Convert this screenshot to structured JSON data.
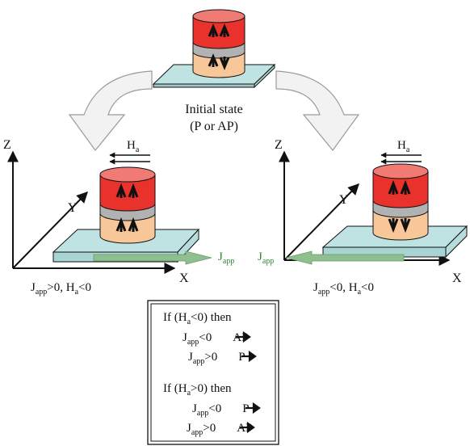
{
  "initial_state": {
    "line1": "Initial state",
    "line2": "(P or AP)"
  },
  "left_panel": {
    "axis_z": "Z",
    "axis_y": "Y",
    "axis_x": "X",
    "field_label": {
      "base": "H",
      "sub": "a"
    },
    "current_label": {
      "base": "J",
      "sub": "app"
    },
    "condition": {
      "j": "J",
      "j_sub": "app",
      "j_rel": ">0, H",
      "h_sub": "a",
      "h_rel": "<0"
    }
  },
  "right_panel": {
    "axis_z": "Z",
    "axis_y": "Y",
    "axis_x": "X",
    "field_label": {
      "base": "H",
      "sub": "a"
    },
    "current_label": {
      "base": "J",
      "sub": "app"
    },
    "condition": {
      "j": "J",
      "j_sub": "app",
      "j_rel": "<0, H",
      "h_sub": "a",
      "h_rel": "<0"
    }
  },
  "rules": {
    "block1": {
      "if": "If  (H",
      "h_sub": "a",
      "cond": "<0)  then",
      "r1_j": "J",
      "r1_sub": "app",
      "r1_rel": "<0",
      "r1_res": "AP",
      "r2_j": "J",
      "r2_sub": "app",
      "r2_rel": ">0",
      "r2_res": "P"
    },
    "block2": {
      "if": "If  (H",
      "h_sub": "a",
      "cond": ">0)  then",
      "r1_j": "J",
      "r1_sub": "app",
      "r1_rel": "<0",
      "r1_res": "P",
      "r2_j": "J",
      "r2_sub": "app",
      "r2_rel": ">0",
      "r2_res": "AP"
    }
  },
  "colors": {
    "free_layer": "#e8322b",
    "spacer": "#b2b2b2",
    "fixed_layer": "#f7c79a",
    "substrate": "#bfe3e3",
    "current_arrow": "#8fbf8f",
    "current_text": "#2e8b2e"
  }
}
